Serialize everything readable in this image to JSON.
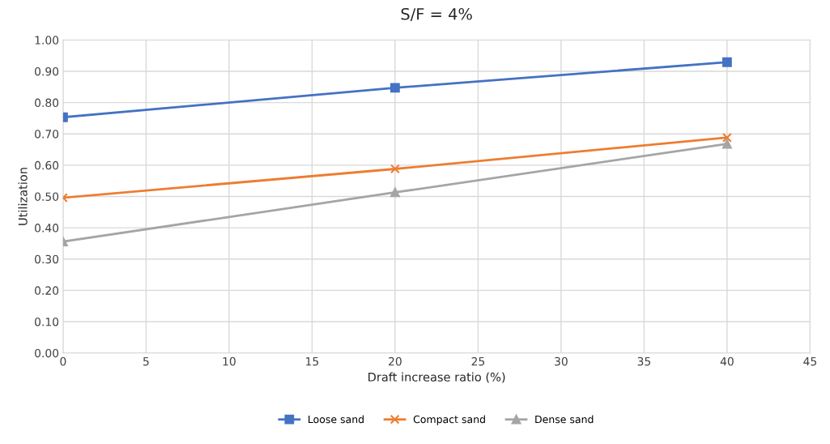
{
  "chart_data": {
    "type": "line",
    "title": "S/F = 4%",
    "xlabel": "Draft increase ratio (%)",
    "ylabel": "Utilization",
    "x": [
      0,
      20,
      40
    ],
    "series": [
      {
        "name": "Loose sand",
        "color": "#4472c4",
        "marker": "square",
        "values": [
          0.753,
          0.847,
          0.929
        ]
      },
      {
        "name": "Compact sand",
        "color": "#ed7d31",
        "marker": "cross",
        "values": [
          0.496,
          0.588,
          0.688
        ]
      },
      {
        "name": "Dense sand",
        "color": "#a5a5a5",
        "marker": "triangle",
        "values": [
          0.356,
          0.513,
          0.668
        ]
      }
    ],
    "xlim": [
      0,
      45
    ],
    "xticks": [
      0,
      5,
      10,
      15,
      20,
      25,
      30,
      35,
      40,
      45
    ],
    "ylim": [
      0,
      1
    ],
    "yticks": [
      {
        "value": 0,
        "label": "0.00"
      },
      {
        "value": 0.1,
        "label": "0.10"
      },
      {
        "value": 0.2,
        "label": "0.20"
      },
      {
        "value": 0.3,
        "label": "0.30"
      },
      {
        "value": 0.4,
        "label": "0.40"
      },
      {
        "value": 0.5,
        "label": "0.50"
      },
      {
        "value": 0.6,
        "label": "0.60"
      },
      {
        "value": 0.7,
        "label": "0.70"
      },
      {
        "value": 0.8,
        "label": "0.80"
      },
      {
        "value": 0.9,
        "label": "0.90"
      },
      {
        "value": 1,
        "label": "1.00"
      }
    ],
    "grid": true,
    "legend": "bottom",
    "line_style": "solid"
  }
}
